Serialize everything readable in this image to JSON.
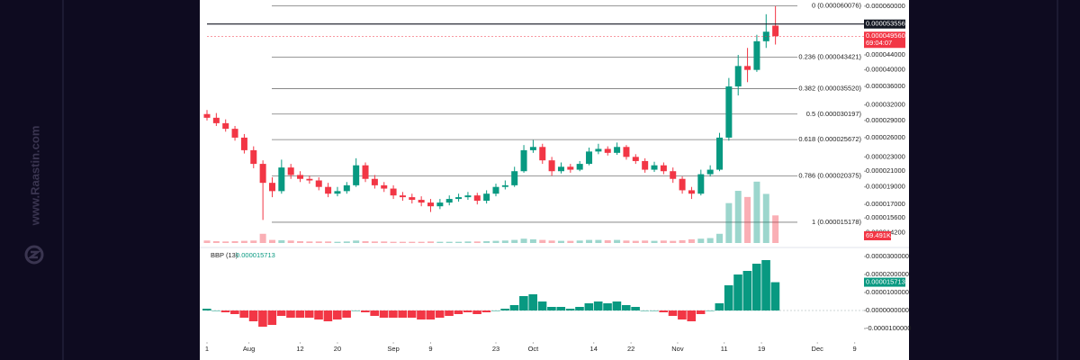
{
  "watermark": "www.Raastin.com",
  "chart_data": [
    {
      "type": "candlestick",
      "x": [
        -9,
        -7,
        -5,
        -3,
        -1,
        1,
        3,
        5,
        7,
        9,
        11,
        13,
        15,
        17,
        19,
        21,
        23,
        25,
        27,
        29,
        31,
        33,
        35,
        37,
        39,
        41,
        43,
        45,
        47,
        49,
        51,
        53,
        55,
        57,
        59,
        61,
        63,
        65,
        67,
        69,
        71,
        73,
        75,
        77,
        79,
        81,
        83,
        85,
        87,
        89,
        91,
        93,
        95,
        97,
        99,
        101,
        103,
        105,
        107,
        109,
        111,
        113
      ],
      "open": [
        3.02e-05,
        2.95e-05,
        2.85e-05,
        2.75e-05,
        2.6e-05,
        2.4e-05,
        2.2e-05,
        1.95e-05,
        1.85e-05,
        2.15e-05,
        2.05e-05,
        2e-05,
        1.98e-05,
        1.9e-05,
        1.82e-05,
        1.85e-05,
        1.92e-05,
        2.18e-05,
        2e-05,
        1.92e-05,
        1.88e-05,
        1.8e-05,
        1.78e-05,
        1.75e-05,
        1.72e-05,
        1.68e-05,
        1.72e-05,
        1.76e-05,
        1.78e-05,
        1.8e-05,
        1.74e-05,
        1.82e-05,
        1.9e-05,
        1.92e-05,
        2.1e-05,
        2.4e-05,
        2.45e-05,
        2.25e-05,
        2.1e-05,
        2.16e-05,
        2.12e-05,
        2.2e-05,
        2.38e-05,
        2.42e-05,
        2.36e-05,
        2.45e-05,
        2.3e-05,
        2.24e-05,
        2.12e-05,
        2.18e-05,
        2.1e-05,
        2e-05,
        1.86e-05,
        1.82e-05,
        2.06e-05,
        2.12e-05,
        2.6e-05,
        3.6e-05,
        4.1e-05,
        4e-05,
        4.8e-05,
        5.3e-05
      ],
      "high": [
        3.1e-05,
        3.04e-05,
        2.92e-05,
        2.8e-05,
        2.66e-05,
        2.46e-05,
        2.25e-05,
        2.02e-05,
        2.26e-05,
        2.2e-05,
        2.1e-05,
        2.04e-05,
        2.02e-05,
        1.95e-05,
        1.9e-05,
        1.96e-05,
        2.28e-05,
        2.22e-05,
        2.05e-05,
        1.96e-05,
        1.92e-05,
        1.84e-05,
        1.82e-05,
        1.79e-05,
        1.76e-05,
        1.76e-05,
        1.8e-05,
        1.82e-05,
        1.84e-05,
        1.83e-05,
        1.86e-05,
        1.94e-05,
        1.98e-05,
        2.16e-05,
        2.48e-05,
        2.56e-05,
        2.5e-05,
        2.3e-05,
        2.22e-05,
        2.2e-05,
        2.24e-05,
        2.44e-05,
        2.5e-05,
        2.46e-05,
        2.52e-05,
        2.48e-05,
        2.34e-05,
        2.28e-05,
        2.23e-05,
        2.22e-05,
        2.15e-05,
        2.03e-05,
        1.9e-05,
        2.12e-05,
        2.18e-05,
        2.68e-05,
        3.8e-05,
        4.4e-05,
        4.6e-05,
        5e-05,
        5.7e-05,
        6e-05
      ],
      "low": [
        2.9e-05,
        2.8e-05,
        2.7e-05,
        2.55e-05,
        2.35e-05,
        2.14e-05,
        1.54e-05,
        1.78e-05,
        1.82e-05,
        2e-05,
        1.96e-05,
        1.94e-05,
        1.86e-05,
        1.78e-05,
        1.79e-05,
        1.82e-05,
        1.9e-05,
        1.96e-05,
        1.88e-05,
        1.84e-05,
        1.76e-05,
        1.74e-05,
        1.71e-05,
        1.68e-05,
        1.62e-05,
        1.65e-05,
        1.69e-05,
        1.73e-05,
        1.75e-05,
        1.7e-05,
        1.71e-05,
        1.79e-05,
        1.87e-05,
        1.9e-05,
        2.08e-05,
        2.36e-05,
        2.2e-05,
        2.04e-05,
        2.07e-05,
        2.08e-05,
        2.1e-05,
        2.18e-05,
        2.34e-05,
        2.32e-05,
        2.33e-05,
        2.26e-05,
        2.2e-05,
        2.08e-05,
        2.09e-05,
        2.06e-05,
        1.95e-05,
        1.82e-05,
        1.76e-05,
        1.8e-05,
        2.03e-05,
        2.1e-05,
        2.55e-05,
        3.4e-05,
        3.7e-05,
        3.95e-05,
        4.6e-05,
        4.7e-05
      ],
      "close": [
        2.95e-05,
        2.85e-05,
        2.75e-05,
        2.6e-05,
        2.4e-05,
        2.2e-05,
        1.95e-05,
        1.85e-05,
        2.15e-05,
        2.05e-05,
        2e-05,
        1.98e-05,
        1.9e-05,
        1.82e-05,
        1.85e-05,
        1.92e-05,
        2.18e-05,
        2e-05,
        1.92e-05,
        1.88e-05,
        1.8e-05,
        1.78e-05,
        1.75e-05,
        1.72e-05,
        1.68e-05,
        1.72e-05,
        1.76e-05,
        1.78e-05,
        1.8e-05,
        1.74e-05,
        1.82e-05,
        1.9e-05,
        1.92e-05,
        2.1e-05,
        2.4e-05,
        2.45e-05,
        2.25e-05,
        2.1e-05,
        2.16e-05,
        2.12e-05,
        2.2e-05,
        2.38e-05,
        2.42e-05,
        2.36e-05,
        2.45e-05,
        2.3e-05,
        2.24e-05,
        2.12e-05,
        2.18e-05,
        2.1e-05,
        2e-05,
        1.86e-05,
        1.82e-05,
        2.06e-05,
        2.12e-05,
        2.6e-05,
        3.6e-05,
        4.1e-05,
        4e-05,
        4.8e-05,
        5.1e-05,
        4.956e-05
      ],
      "volume": [
        8,
        6,
        5,
        6,
        7,
        8,
        30,
        10,
        9,
        8,
        6,
        5,
        5,
        5,
        4,
        5,
        8,
        6,
        5,
        5,
        4,
        4,
        4,
        4,
        5,
        4,
        4,
        4,
        5,
        5,
        6,
        7,
        8,
        10,
        14,
        12,
        10,
        8,
        7,
        7,
        8,
        10,
        10,
        9,
        10,
        8,
        7,
        8,
        7,
        8,
        7,
        9,
        12,
        14,
        16,
        30,
        130,
        170,
        150,
        200,
        160,
        90
      ],
      "vlim": [
        0,
        220
      ],
      "volume_label": "69.491K",
      "up_color": "#089981",
      "down_color": "#f23645",
      "log_scale": true,
      "xlim": [
        -9,
        132
      ],
      "ylim": [
        1.33e-05,
        6.24e-05
      ],
      "xticks": [
        {
          "value": -9,
          "label": "1"
        },
        {
          "value": 0,
          "label": "Aug"
        },
        {
          "value": 11,
          "label": "12"
        },
        {
          "value": 19,
          "label": "20"
        },
        {
          "value": 31,
          "label": "Sep"
        },
        {
          "value": 39,
          "label": "9"
        },
        {
          "value": 53,
          "label": "23"
        },
        {
          "value": 61,
          "label": "Oct"
        },
        {
          "value": 74,
          "label": "14"
        },
        {
          "value": 82,
          "label": "22"
        },
        {
          "value": 92,
          "label": "Nov"
        },
        {
          "value": 102,
          "label": "11"
        },
        {
          "value": 110,
          "label": "19"
        },
        {
          "value": 122,
          "label": "Dec"
        },
        {
          "value": 130,
          "label": "9"
        }
      ],
      "yticks": [
        {
          "value": 6e-05,
          "label": "0.000060000"
        },
        {
          "value": 4.4e-05,
          "label": "0.000044000"
        },
        {
          "value": 4e-05,
          "label": "0.000040000"
        },
        {
          "value": 3.6e-05,
          "label": "0.000036000"
        },
        {
          "value": 3.2e-05,
          "label": "0.000032000"
        },
        {
          "value": 2.9e-05,
          "label": "0.000029000"
        },
        {
          "value": 2.6e-05,
          "label": "0.000026000"
        },
        {
          "value": 2.3e-05,
          "label": "0.000023000"
        },
        {
          "value": 2.1e-05,
          "label": "0.000021000"
        },
        {
          "value": 1.9e-05,
          "label": "0.000019000"
        },
        {
          "value": 1.7e-05,
          "label": "0.000017000"
        },
        {
          "value": 1.56e-05,
          "label": "0.000015600"
        },
        {
          "value": 1.42e-05,
          "label": "0.000014200"
        }
      ],
      "fib_levels": [
        {
          "value": 6.0076e-05,
          "label": "0 (0.000060076)"
        },
        {
          "value": 4.3421e-05,
          "label": "0.236 (0.000043421)"
        },
        {
          "value": 3.552e-05,
          "label": "0.382 (0.000035520)"
        },
        {
          "value": 3.0197e-05,
          "label": "0.5 (0.000030197)"
        },
        {
          "value": 2.5672e-05,
          "label": "0.618 (0.000025672)"
        },
        {
          "value": 2.0375e-05,
          "label": "0.786 (0.000020375)"
        },
        {
          "value": 1.5178e-05,
          "label": "1 (0.000015178)"
        }
      ],
      "last_price": {
        "value": 5.3556e-05,
        "label": "0.000053556"
      },
      "current_price": {
        "value": 4.956e-05,
        "label": "0.000049560",
        "countdown": "69:04:07"
      }
    },
    {
      "type": "bar",
      "legend": "BBP (13)",
      "last_label": "0.000015713",
      "values": [
        1e-06,
        0,
        -1e-06,
        -2e-06,
        -4e-06,
        -6e-06,
        -9e-06,
        -8e-06,
        -3e-06,
        -4e-06,
        -4e-06,
        -4e-06,
        -5e-06,
        -6e-06,
        -5e-06,
        -4e-06,
        0,
        -1e-06,
        -3e-06,
        -4e-06,
        -4e-06,
        -4e-06,
        -4e-06,
        -5e-06,
        -5e-06,
        -4e-06,
        -3e-06,
        -2e-06,
        -1e-06,
        -2e-06,
        -1e-06,
        0,
        1e-06,
        3e-06,
        8e-06,
        9e-06,
        5e-06,
        2e-06,
        2e-06,
        1e-06,
        2e-06,
        4e-06,
        5e-06,
        4e-06,
        5e-06,
        3e-06,
        2e-06,
        0,
        0,
        -1e-06,
        -3e-06,
        -5e-06,
        -6e-06,
        -2e-06,
        0,
        4e-06,
        1.4e-05,
        2e-05,
        2.2e-05,
        2.6e-05,
        2.8e-05,
        1.5713e-05
      ],
      "pos_color": "#089981",
      "neg_color": "#f23645",
      "ylim": [
        -1.65e-05,
        3.35e-05
      ],
      "yticks": [
        {
          "value": 3e-05,
          "label": "0.0000300000"
        },
        {
          "value": 2e-05,
          "label": "0.0000200000"
        },
        {
          "value": 1e-05,
          "label": "0.0000100000"
        },
        {
          "value": 0,
          "label": "0.0000000000"
        },
        {
          "value": -1e-05,
          "label": "-0.0000100000"
        }
      ]
    }
  ]
}
